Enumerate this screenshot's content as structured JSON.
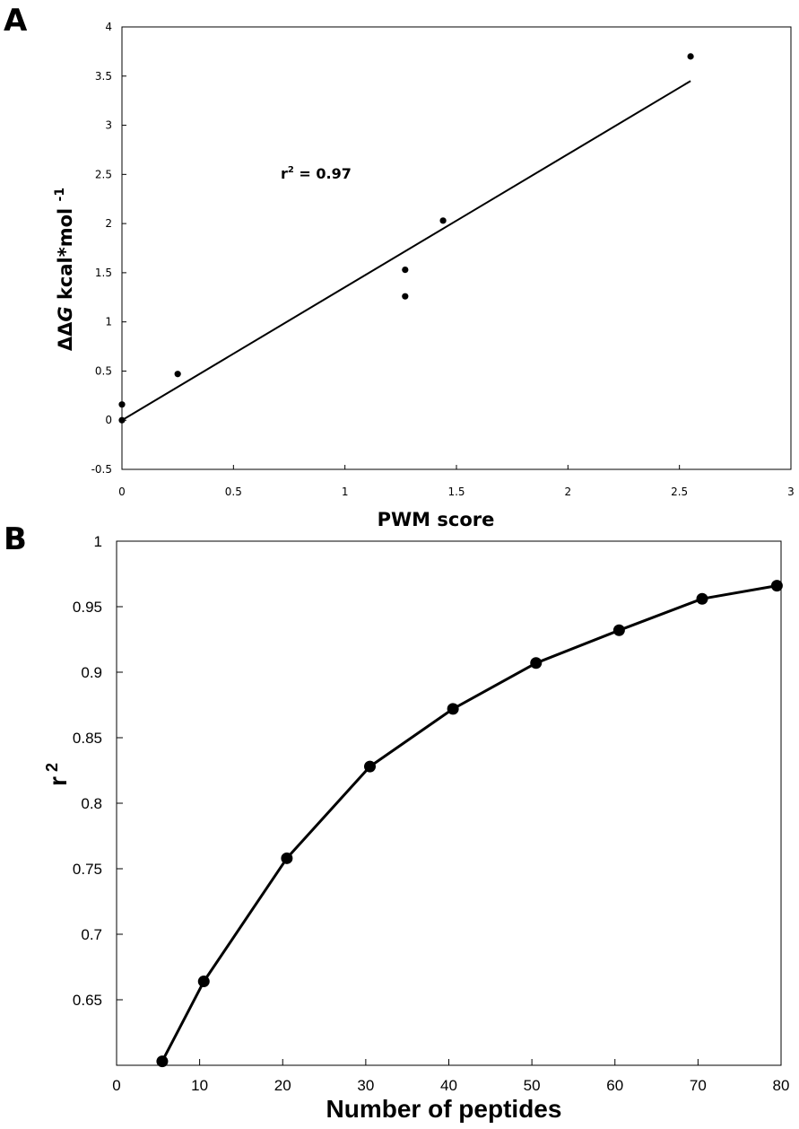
{
  "chart_data": [
    {
      "panel": "A",
      "type": "scatter",
      "xlabel": "PWM score",
      "ylabel_prefix": "ΔΔ",
      "ylabel_italic": "G",
      "ylabel_rest": " kcal*mol",
      "ylabel_sup": "-1",
      "xlim": [
        0,
        3
      ],
      "ylim": [
        -0.5,
        4
      ],
      "xticks": [
        "0",
        "0.5",
        "1",
        "1.5",
        "2",
        "2.5",
        "3"
      ],
      "yticks": [
        "-0.5",
        "0",
        "0.5",
        "1",
        "1.5",
        "2",
        "2.5",
        "3",
        "3.5",
        "4"
      ],
      "points": [
        {
          "x": 0,
          "y": 0
        },
        {
          "x": 0,
          "y": 0.16
        },
        {
          "x": 0.25,
          "y": 0.47
        },
        {
          "x": 1.27,
          "y": 1.26
        },
        {
          "x": 1.27,
          "y": 1.53
        },
        {
          "x": 1.44,
          "y": 2.03
        },
        {
          "x": 2.55,
          "y": 3.7
        }
      ],
      "fit_line": {
        "x": [
          0,
          2.55
        ],
        "y": [
          0,
          3.45
        ]
      },
      "annotation": {
        "text_prefix": "r",
        "text_sup": "2",
        "text_rest": " = 0.97"
      },
      "grid": false
    },
    {
      "panel": "B",
      "type": "line",
      "xlabel": "Number of peptides",
      "ylabel": "r",
      "ylabel_sup": "2",
      "xlim": [
        0,
        80
      ],
      "ylim": [
        0.6,
        1
      ],
      "xticks": [
        "0",
        "10",
        "20",
        "30",
        "40",
        "50",
        "60",
        "70",
        "80"
      ],
      "yticks": [
        "0.65",
        "0.7",
        "0.75",
        "0.8",
        "0.85",
        "0.9",
        "0.95",
        "1"
      ],
      "series": [
        {
          "x": [
            5.5,
            10.5,
            20.5,
            30.5,
            40.5,
            50.5,
            60.5,
            70.5,
            79.5
          ],
          "values": [
            0.603,
            0.664,
            0.758,
            0.828,
            0.872,
            0.907,
            0.932,
            0.956,
            0.966
          ]
        }
      ],
      "grid": false
    }
  ]
}
